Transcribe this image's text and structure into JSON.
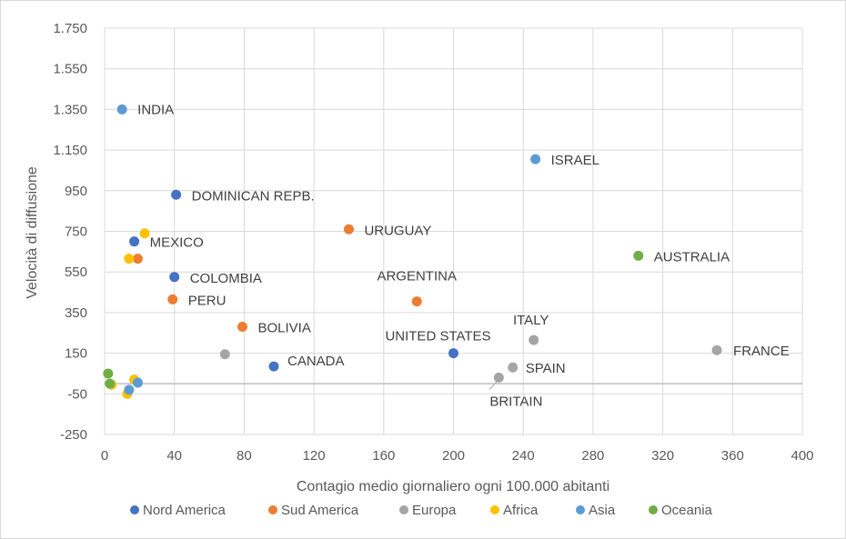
{
  "chart_data": {
    "type": "scatter",
    "xlabel": "Contagio medio giornaliero ogni 100.000 abitanti",
    "ylabel": "Velocità di diffusione",
    "xlim": [
      0,
      400
    ],
    "ylim": [
      -250,
      1750
    ],
    "x_ticks": [
      0,
      40,
      80,
      120,
      160,
      200,
      240,
      280,
      320,
      360,
      400
    ],
    "y_ticks": [
      1750,
      1550,
      1350,
      1150,
      950,
      750,
      550,
      350,
      150,
      -50,
      -250
    ],
    "y_tick_labels": [
      "1.750",
      "1.550",
      "1.350",
      "1.150",
      "950",
      "750",
      "550",
      "350",
      "150",
      "-50",
      "-250"
    ],
    "grid": true,
    "legend_position": "bottom",
    "series": [
      {
        "name": "Nord America",
        "color": "#4472c4",
        "points": [
          {
            "x": 41,
            "y": 930,
            "label": "DOMINICAN REPB."
          },
          {
            "x": 17,
            "y": 700,
            "label": "MEXICO"
          },
          {
            "x": 40,
            "y": 525,
            "label": "COLOMBIA"
          },
          {
            "x": 97,
            "y": 85,
            "label": "CANADA"
          },
          {
            "x": 200,
            "y": 150,
            "label": "UNITED STATES"
          }
        ]
      },
      {
        "name": "Sud America",
        "color": "#ed7d31",
        "points": [
          {
            "x": 140,
            "y": 760,
            "label": "URUGUAY"
          },
          {
            "x": 19,
            "y": 615,
            "label": ""
          },
          {
            "x": 39,
            "y": 415,
            "label": "PERU"
          },
          {
            "x": 79,
            "y": 280,
            "label": "BOLIVIA"
          },
          {
            "x": 179,
            "y": 405,
            "label": "ARGENTINA"
          }
        ]
      },
      {
        "name": "Europa",
        "color": "#a5a5a5",
        "points": [
          {
            "x": 69,
            "y": 145,
            "label": ""
          },
          {
            "x": 246,
            "y": 215,
            "label": "ITALY"
          },
          {
            "x": 234,
            "y": 80,
            "label": "SPAIN"
          },
          {
            "x": 226,
            "y": 30,
            "label": "BRITAIN"
          },
          {
            "x": 351,
            "y": 165,
            "label": "FRANCE"
          }
        ]
      },
      {
        "name": "Africa",
        "color": "#ffc000",
        "points": [
          {
            "x": 23,
            "y": 740,
            "label": ""
          },
          {
            "x": 14,
            "y": 615,
            "label": ""
          },
          {
            "x": 17,
            "y": 20,
            "label": ""
          },
          {
            "x": 4,
            "y": -5,
            "label": ""
          },
          {
            "x": 13,
            "y": -50,
            "label": ""
          }
        ]
      },
      {
        "name": "Asia",
        "color": "#5b9bd5",
        "points": [
          {
            "x": 10,
            "y": 1350,
            "label": "INDIA"
          },
          {
            "x": 247,
            "y": 1105,
            "label": "ISRAEL"
          },
          {
            "x": 19,
            "y": 5,
            "label": ""
          },
          {
            "x": 14,
            "y": -30,
            "label": ""
          }
        ]
      },
      {
        "name": "Oceania",
        "color": "#70ad47",
        "points": [
          {
            "x": 306,
            "y": 630,
            "label": "AUSTRALIA"
          },
          {
            "x": 2,
            "y": 50,
            "label": ""
          },
          {
            "x": 3,
            "y": 0,
            "label": ""
          }
        ]
      }
    ]
  }
}
